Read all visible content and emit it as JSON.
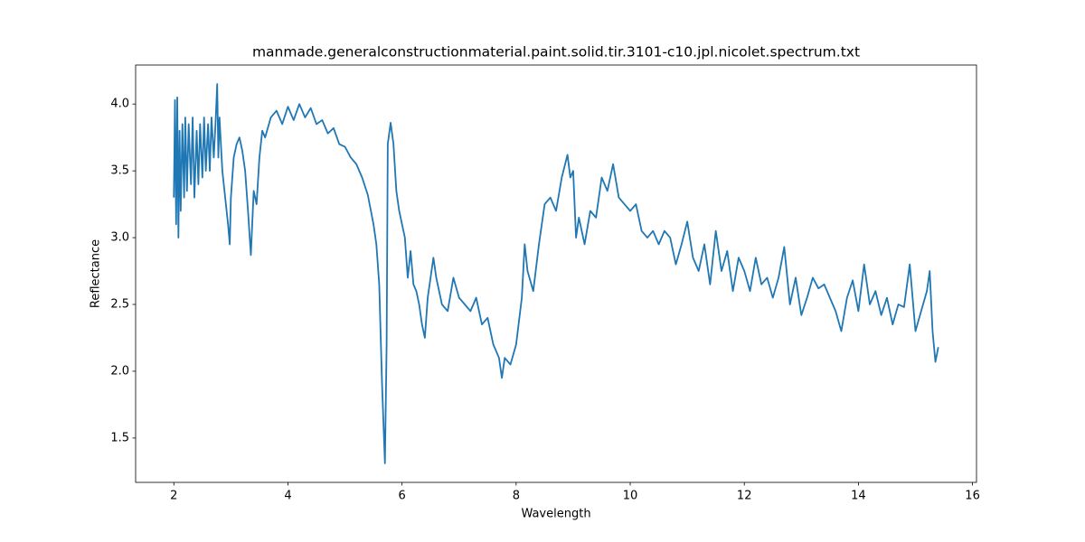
{
  "chart_data": {
    "type": "line",
    "title": "manmade.generalconstructionmaterial.paint.solid.tir.3101-c10.jpl.nicolet.spectrum.txt",
    "xlabel": "Wavelength",
    "ylabel": "Reflectance",
    "color": "#1f77b4",
    "xlim": [
      1.33,
      16.07
    ],
    "ylim": [
      1.168,
      4.292
    ],
    "xticks": [
      2,
      4,
      6,
      8,
      10,
      12,
      14,
      16
    ],
    "yticks": [
      1.5,
      {
        "value": 2,
        "label": "2.0"
      },
      2.5,
      {
        "value": 3,
        "label": "3.0"
      },
      3.5,
      {
        "value": 4,
        "label": "4.0"
      }
    ],
    "x": [
      2.0,
      2.02,
      2.04,
      2.06,
      2.08,
      2.1,
      2.12,
      2.15,
      2.18,
      2.2,
      2.23,
      2.26,
      2.3,
      2.33,
      2.36,
      2.4,
      2.43,
      2.46,
      2.5,
      2.53,
      2.56,
      2.6,
      2.63,
      2.66,
      2.7,
      2.73,
      2.76,
      2.78,
      2.8,
      2.85,
      2.9,
      2.95,
      2.98,
      3.0,
      3.05,
      3.1,
      3.15,
      3.2,
      3.25,
      3.3,
      3.35,
      3.4,
      3.45,
      3.5,
      3.55,
      3.6,
      3.7,
      3.8,
      3.9,
      4.0,
      4.1,
      4.2,
      4.3,
      4.4,
      4.5,
      4.6,
      4.7,
      4.8,
      4.9,
      5.0,
      5.1,
      5.2,
      5.3,
      5.4,
      5.5,
      5.55,
      5.6,
      5.65,
      5.7,
      5.73,
      5.75,
      5.8,
      5.85,
      5.9,
      5.95,
      6.0,
      6.05,
      6.1,
      6.15,
      6.2,
      6.25,
      6.3,
      6.35,
      6.4,
      6.45,
      6.5,
      6.55,
      6.6,
      6.7,
      6.8,
      6.9,
      7.0,
      7.1,
      7.2,
      7.3,
      7.4,
      7.5,
      7.6,
      7.7,
      7.75,
      7.8,
      7.9,
      8.0,
      8.1,
      8.15,
      8.2,
      8.3,
      8.4,
      8.5,
      8.6,
      8.7,
      8.8,
      8.9,
      8.95,
      9.0,
      9.05,
      9.1,
      9.2,
      9.3,
      9.4,
      9.5,
      9.6,
      9.7,
      9.8,
      9.9,
      10.0,
      10.1,
      10.2,
      10.3,
      10.4,
      10.5,
      10.6,
      10.7,
      10.8,
      10.9,
      11.0,
      11.1,
      11.2,
      11.3,
      11.4,
      11.5,
      11.6,
      11.7,
      11.8,
      11.9,
      12.0,
      12.1,
      12.2,
      12.3,
      12.4,
      12.5,
      12.6,
      12.7,
      12.8,
      12.9,
      13.0,
      13.1,
      13.2,
      13.3,
      13.4,
      13.5,
      13.6,
      13.7,
      13.8,
      13.9,
      14.0,
      14.1,
      14.2,
      14.3,
      14.4,
      14.5,
      14.6,
      14.7,
      14.8,
      14.9,
      15.0,
      15.1,
      15.2,
      15.25,
      15.3,
      15.35,
      15.4
    ],
    "values": [
      3.3,
      4.03,
      3.1,
      4.05,
      3.0,
      3.8,
      3.2,
      3.85,
      3.3,
      3.9,
      3.35,
      3.85,
      3.4,
      3.9,
      3.3,
      3.8,
      3.4,
      3.85,
      3.45,
      3.9,
      3.5,
      3.85,
      3.5,
      3.9,
      3.6,
      3.85,
      4.15,
      3.6,
      3.9,
      3.5,
      3.3,
      3.1,
      2.95,
      3.3,
      3.6,
      3.7,
      3.75,
      3.65,
      3.5,
      3.2,
      2.87,
      3.35,
      3.25,
      3.6,
      3.8,
      3.75,
      3.9,
      3.95,
      3.85,
      3.98,
      3.88,
      4.0,
      3.9,
      3.97,
      3.85,
      3.88,
      3.78,
      3.82,
      3.7,
      3.68,
      3.6,
      3.55,
      3.45,
      3.32,
      3.1,
      2.95,
      2.65,
      1.9,
      1.31,
      2.2,
      3.7,
      3.86,
      3.7,
      3.35,
      3.2,
      3.1,
      3.0,
      2.7,
      2.9,
      2.65,
      2.6,
      2.5,
      2.35,
      2.25,
      2.55,
      2.7,
      2.85,
      2.7,
      2.5,
      2.45,
      2.7,
      2.55,
      2.5,
      2.45,
      2.55,
      2.35,
      2.4,
      2.2,
      2.1,
      1.95,
      2.1,
      2.05,
      2.2,
      2.55,
      2.95,
      2.75,
      2.6,
      2.95,
      3.25,
      3.3,
      3.2,
      3.45,
      3.62,
      3.45,
      3.5,
      3.0,
      3.15,
      2.95,
      3.2,
      3.15,
      3.45,
      3.35,
      3.55,
      3.3,
      3.25,
      3.2,
      3.25,
      3.05,
      3.0,
      3.05,
      2.95,
      3.05,
      3.0,
      2.8,
      2.95,
      3.12,
      2.85,
      2.75,
      2.95,
      2.65,
      3.05,
      2.75,
      2.9,
      2.6,
      2.85,
      2.75,
      2.6,
      2.85,
      2.65,
      2.7,
      2.55,
      2.7,
      2.93,
      2.5,
      2.7,
      2.42,
      2.55,
      2.7,
      2.62,
      2.65,
      2.55,
      2.45,
      2.3,
      2.55,
      2.68,
      2.45,
      2.8,
      2.5,
      2.6,
      2.42,
      2.55,
      2.35,
      2.5,
      2.48,
      2.8,
      2.3,
      2.45,
      2.6,
      2.75,
      2.3,
      2.07,
      2.18
    ]
  }
}
